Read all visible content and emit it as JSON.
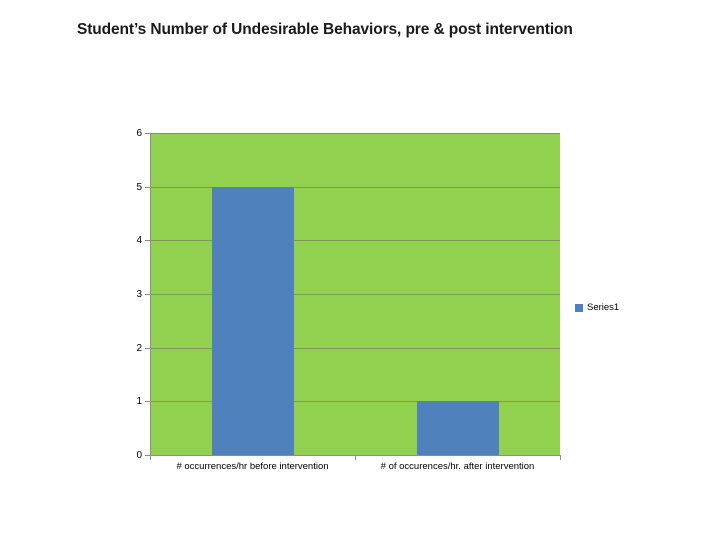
{
  "title": "Student’s Number of Undesirable Behaviors, pre & post intervention",
  "chart_data": {
    "type": "bar",
    "title": "Student’s Number of Undesirable Behaviors, pre & post intervention",
    "categories": [
      "# occurrences/hr before intervention",
      "# of occurences/hr. after intervention"
    ],
    "series": [
      {
        "name": "Series1",
        "values": [
          5,
          1
        ]
      }
    ],
    "xlabel": "",
    "ylabel": "",
    "ylim": [
      0,
      6
    ],
    "ytick_step": 1,
    "grid": true,
    "legend_position": "right",
    "colors": {
      "bar": "#4F81BD",
      "plot_bg": "#92D050",
      "gridline": "#7E9B52",
      "axis": "#8C8C8C",
      "text": "#000000",
      "title_text": "#1A1A1A"
    }
  }
}
